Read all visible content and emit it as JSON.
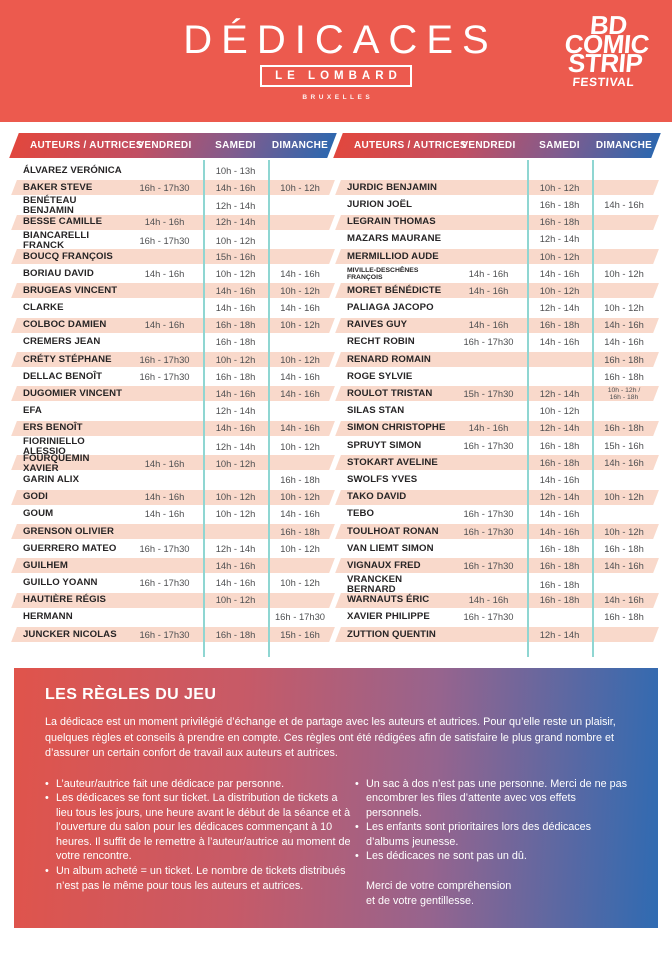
{
  "banner": {
    "title": "DÉDICACES",
    "publisher": "LE LOMBARD",
    "city": "BRUXELLES",
    "festival_logo": [
      "BD",
      "COMIC",
      "STRIP",
      "FESTIVAL"
    ]
  },
  "colors": {
    "banner_red": "#ec5a4e",
    "grad_red": "#e1473e",
    "grad_blue": "#2e67ae",
    "row_pink": "#f9d9cb",
    "divider_teal": "#8fd6d2",
    "name_ink": "#262425",
    "time_ink": "#4e4f51"
  },
  "table": {
    "headers": [
      "AUTEURS / AUTRICES",
      "VENDREDI",
      "SAMEDI",
      "DIMANCHE"
    ],
    "left_rows": [
      {
        "n": "ÁLVAREZ VERÓNICA",
        "v": "",
        "s": "10h - 13h",
        "d": ""
      },
      {
        "n": "BAKER STEVE",
        "v": "16h - 17h30",
        "s": "14h - 16h",
        "d": "10h - 12h"
      },
      {
        "n": "BENÉTEAU BENJAMIN",
        "v": "",
        "s": "12h - 14h",
        "d": ""
      },
      {
        "n": "BESSE CAMILLE",
        "v": "14h - 16h",
        "s": "12h - 14h",
        "d": ""
      },
      {
        "n": "BIANCARELLI FRANCK",
        "v": "16h - 17h30",
        "s": "10h - 12h",
        "d": ""
      },
      {
        "n": "BOUCQ FRANÇOIS",
        "v": "",
        "s": "15h - 16h",
        "d": ""
      },
      {
        "n": "BORIAU DAVID",
        "v": "14h - 16h",
        "s": "10h - 12h",
        "d": "14h - 16h"
      },
      {
        "n": "BRUGEAS VINCENT",
        "v": "",
        "s": "14h - 16h",
        "d": "10h - 12h"
      },
      {
        "n": "CLARKE",
        "v": "",
        "s": "14h - 16h",
        "d": "14h - 16h"
      },
      {
        "n": "COLBOC DAMIEN",
        "v": "14h - 16h",
        "s": "16h - 18h",
        "d": "10h - 12h"
      },
      {
        "n": "CREMERS JEAN",
        "v": "",
        "s": "16h - 18h",
        "d": ""
      },
      {
        "n": "CRÉTY STÉPHANE",
        "v": "16h - 17h30",
        "s": "10h - 12h",
        "d": "10h - 12h"
      },
      {
        "n": "DELLAC BENOÎT",
        "v": "16h - 17h30",
        "s": "16h - 18h",
        "d": "14h - 16h"
      },
      {
        "n": "DUGOMIER VINCENT",
        "v": "",
        "s": "14h - 16h",
        "d": "14h - 16h"
      },
      {
        "n": "EFA",
        "v": "",
        "s": "12h - 14h",
        "d": ""
      },
      {
        "n": "ERS BENOÎT",
        "v": "",
        "s": "14h - 16h",
        "d": "14h - 16h"
      },
      {
        "n": "FIORINIELLO ALESSIO",
        "v": "",
        "s": "12h - 14h",
        "d": "10h - 12h"
      },
      {
        "n": "FOURQUEMIN XAVIER",
        "v": "14h - 16h",
        "s": "10h - 12h",
        "d": ""
      },
      {
        "n": "GARIN ALIX",
        "v": "",
        "s": "",
        "d": "16h - 18h"
      },
      {
        "n": "GODI",
        "v": "14h - 16h",
        "s": "10h - 12h",
        "d": "10h - 12h"
      },
      {
        "n": "GOUM",
        "v": "14h - 16h",
        "s": "10h - 12h",
        "d": "14h - 16h"
      },
      {
        "n": "GRENSON OLIVIER",
        "v": "",
        "s": "",
        "d": "16h - 18h"
      },
      {
        "n": "GUERRERO MATEO",
        "v": "16h - 17h30",
        "s": "12h - 14h",
        "d": "10h - 12h"
      },
      {
        "n": "GUILHEM",
        "v": "",
        "s": "14h - 16h",
        "d": ""
      },
      {
        "n": "GUILLO YOANN",
        "v": "16h - 17h30",
        "s": "14h - 16h",
        "d": "10h - 12h"
      },
      {
        "n": "HAUTIÈRE RÉGIS",
        "v": "",
        "s": "10h - 12h",
        "d": ""
      },
      {
        "n": "HERMANN",
        "v": "",
        "s": "",
        "d": "16h - 17h30"
      },
      {
        "n": "JUNCKER NICOLAS",
        "v": "16h - 17h30",
        "s": "16h - 18h",
        "d": "15h - 16h"
      }
    ],
    "right_rows": [
      {
        "n": "JURDIC BENJAMIN",
        "v": "",
        "s": "10h - 12h",
        "d": ""
      },
      {
        "n": "JURION JOËL",
        "v": "",
        "s": "16h - 18h",
        "d": "14h - 16h"
      },
      {
        "n": "LEGRAIN THOMAS",
        "v": "",
        "s": "16h - 18h",
        "d": ""
      },
      {
        "n": "MAZARS MAURANE",
        "v": "",
        "s": "12h - 14h",
        "d": ""
      },
      {
        "n": "MERMILLIOD AUDE",
        "v": "",
        "s": "10h - 12h",
        "d": ""
      },
      {
        "n": "MIVILLE-DESCHÊNES\nFRANÇOIS",
        "v": "14h - 16h",
        "s": "14h - 16h",
        "d": "10h - 12h",
        "ns": true
      },
      {
        "n": "MORET BÉNÉDICTE",
        "v": "14h - 16h",
        "s": "10h - 12h",
        "d": ""
      },
      {
        "n": "PALIAGA JACOPO",
        "v": "",
        "s": "12h - 14h",
        "d": "10h - 12h"
      },
      {
        "n": "RAIVES GUY",
        "v": "14h - 16h",
        "s": "16h - 18h",
        "d": "14h - 16h"
      },
      {
        "n": "RECHT ROBIN",
        "v": "16h - 17h30",
        "s": "14h - 16h",
        "d": "14h - 16h"
      },
      {
        "n": "RENARD ROMAIN",
        "v": "",
        "s": "",
        "d": "16h - 18h"
      },
      {
        "n": "ROGE SYLVIE",
        "v": "",
        "s": "",
        "d": "16h - 18h"
      },
      {
        "n": "ROULOT TRISTAN",
        "v": "15h - 17h30",
        "s": "12h - 14h",
        "d": "10h - 12h /\n16h - 18h",
        "ds": true
      },
      {
        "n": "SILAS STAN",
        "v": "",
        "s": "10h - 12h",
        "d": ""
      },
      {
        "n": "SIMON CHRISTOPHE",
        "v": "14h - 16h",
        "s": "12h - 14h",
        "d": "16h - 18h"
      },
      {
        "n": "SPRUYT SIMON",
        "v": "16h - 17h30",
        "s": "16h - 18h",
        "d": "15h - 16h"
      },
      {
        "n": "STOKART AVELINE",
        "v": "",
        "s": "16h - 18h",
        "d": "14h - 16h"
      },
      {
        "n": "SWOLFS YVES",
        "v": "",
        "s": "14h - 16h",
        "d": ""
      },
      {
        "n": "TAKO DAVID",
        "v": "",
        "s": "12h - 14h",
        "d": "10h - 12h"
      },
      {
        "n": "TEBO",
        "v": "16h - 17h30",
        "s": "14h - 16h",
        "d": ""
      },
      {
        "n": "TOULHOAT RONAN",
        "v": "16h - 17h30",
        "s": "14h - 16h",
        "d": "10h - 12h"
      },
      {
        "n": "VAN LIEMT SIMON",
        "v": "",
        "s": "16h - 18h",
        "d": "16h - 18h"
      },
      {
        "n": "VIGNAUX FRED",
        "v": "16h - 17h30",
        "s": "16h - 18h",
        "d": "14h - 16h"
      },
      {
        "n": "VRANCKEN BERNARD",
        "v": "",
        "s": "16h - 18h",
        "d": ""
      },
      {
        "n": "WARNAUTS ÉRIC",
        "v": "14h - 16h",
        "s": "16h - 18h",
        "d": "14h - 16h"
      },
      {
        "n": "XAVIER PHILIPPE",
        "v": "16h - 17h30",
        "s": "",
        "d": "16h - 18h"
      },
      {
        "n": "ZUTTION QUENTIN",
        "v": "",
        "s": "12h - 14h",
        "d": ""
      }
    ]
  },
  "rules": {
    "title": "LES RÈGLES DU JEU",
    "intro": "La dédicace est un moment privilégié d’échange et de partage avec les auteurs et autrices. Pour qu’elle reste un plaisir, quelques règles et conseils à prendre en compte. Ces règles ont été rédigées afin de satisfaire le plus grand nombre et d’assurer un certain confort de travail aux auteurs et autrices.",
    "left_bullets": [
      "L’auteur/autrice fait une dédicace par personne.",
      "Les dédicaces se font sur ticket. La distribution de tickets a lieu tous les jours, une heure avant le début de la séance et à l’ouverture du salon pour les dédicaces commençant à 10 heures. Il suffit de le remettre à l’auteur/autrice au moment de votre rencontre.",
      "Un album acheté = un ticket. Le nombre de tickets distribués n’est pas le même pour tous les auteurs et autrices."
    ],
    "right_bullets": [
      "Un sac à dos n’est pas une personne. Merci de ne pas encombrer les files d’attente avec vos effets personnels.",
      "Les enfants sont prioritaires lors des dédicaces d’albums jeunesse.",
      "Les dédicaces ne sont pas un dû."
    ],
    "closing": "Merci de votre compréhension\net de votre gentillesse."
  }
}
